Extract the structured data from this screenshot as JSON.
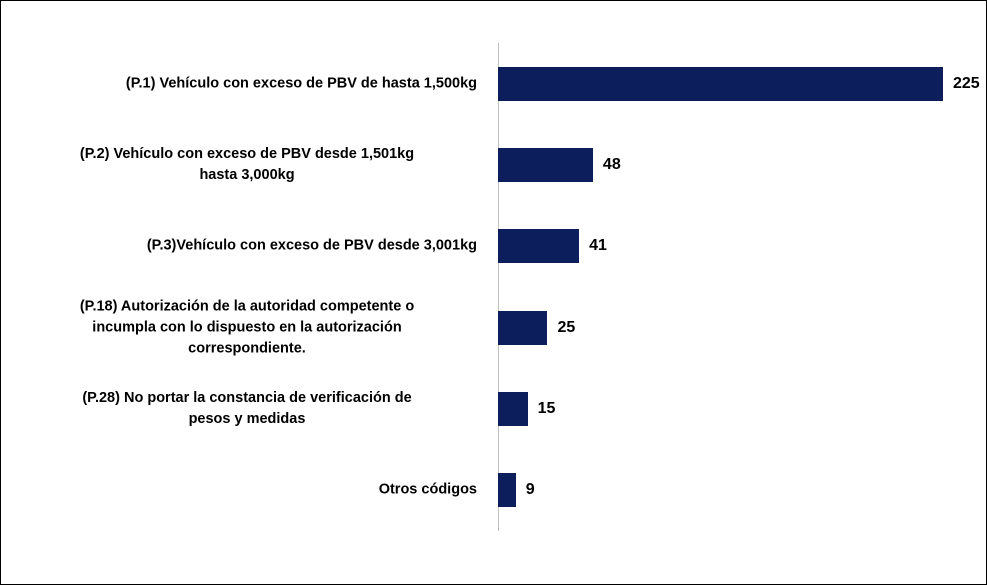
{
  "chart_data": {
    "type": "barh",
    "categories": [
      "(P.1) Vehículo con exceso de PBV de hasta 1,500kg",
      "(P.2) Vehículo con exceso de PBV desde 1,501kg\nhasta 3,000kg",
      "(P.3)Vehículo con exceso de PBV desde 3,001kg",
      "(P.18) Autorización de la autoridad competente o\nincumpla con lo dispuesto en la autorización\ncorrespondiente.",
      "(P.28) No portar la constancia de verificación de\npesos y medidas",
      "Otros códigos"
    ],
    "values": [
      225,
      48,
      41,
      25,
      15,
      9
    ],
    "color": "#0c1f5c"
  }
}
